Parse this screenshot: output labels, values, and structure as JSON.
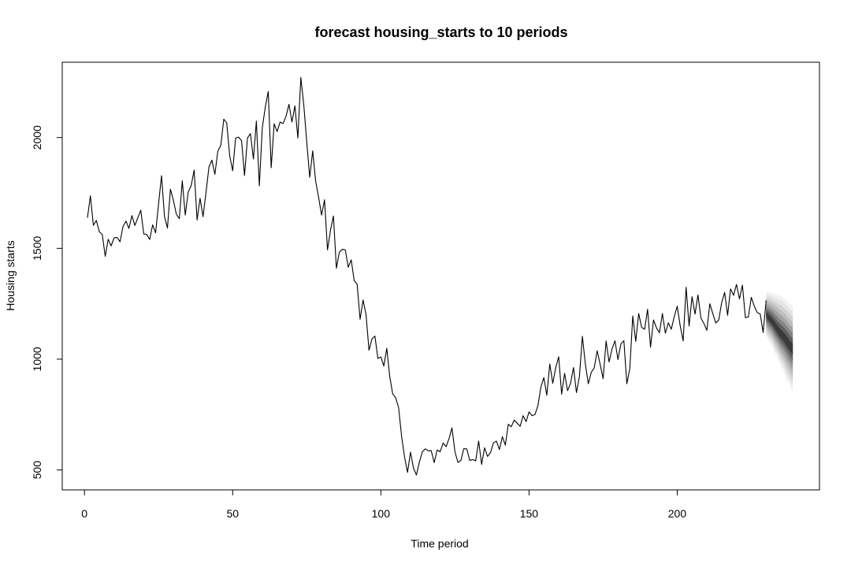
{
  "chart_data": {
    "type": "line",
    "title": "forecast housing_starts to 10 periods",
    "xlabel": "Time period",
    "ylabel": "Housing starts",
    "xlim": [
      -7.5,
      248
    ],
    "ylim": [
      410,
      2340
    ],
    "x_ticks": [
      0,
      50,
      100,
      150,
      200
    ],
    "y_ticks": [
      500,
      1000,
      1500,
      2000
    ],
    "grid": false,
    "legend": "none",
    "colors": {
      "line": "#000000",
      "fan_levels": [
        "#f2f2f2",
        "#e4e4e4",
        "#d2d2d2",
        "#bdbdbd",
        "#a3a3a3",
        "#858585",
        "#606060",
        "#3a3a3a"
      ]
    },
    "series": [
      {
        "values": [
          1638,
          1737,
          1604,
          1626,
          1575,
          1563,
          1464,
          1541,
          1511,
          1548,
          1549,
          1530,
          1598,
          1623,
          1590,
          1648,
          1603,
          1638,
          1672,
          1565,
          1563,
          1540,
          1606,
          1570,
          1701,
          1828,
          1643,
          1592,
          1767,
          1717,
          1654,
          1634,
          1805,
          1650,
          1754,
          1783,
          1853,
          1628,
          1726,
          1643,
          1751,
          1867,
          1898,
          1834,
          1939,
          1965,
          2083,
          2066,
          1918,
          1850,
          1998,
          2002,
          1986,
          1829,
          1998,
          2018,
          1903,
          2074,
          1782,
          2044,
          2137,
          2208,
          1864,
          2062,
          2027,
          2070,
          2063,
          2096,
          2150,
          2070,
          2143,
          1998,
          2271,
          2147,
          1979,
          1821,
          1940,
          1803,
          1730,
          1650,
          1719,
          1493,
          1581,
          1646,
          1410,
          1483,
          1496,
          1493,
          1415,
          1448,
          1355,
          1338,
          1180,
          1267,
          1201,
          1040,
          1091,
          1104,
          1003,
          1010,
          969,
          1049,
          921,
          843,
          826,
          781,
          651,
          559,
          489,
          580,
          509,
          477,
          536,
          582,
          595,
          586,
          587,
          533,
          590,
          582,
          621,
          605,
          641,
          690,
          582,
          534,
          543,
          596,
          595,
          543,
          547,
          541,
          630,
          525,
          600,
          561,
          578,
          623,
          630,
          592,
          650,
          612,
          706,
          695,
          725,
          711,
          697,
          745,
          718,
          762,
          745,
          750,
          790,
          874,
          917,
          837,
          978,
          891,
          961,
          1011,
          842,
          936,
          858,
          891,
          962,
          849,
          922,
          1103,
          978,
          889,
          940,
          961,
          1038,
          976,
          912,
          1082,
          987,
          1046,
          1083,
          998,
          1069,
          1083,
          889,
          957,
          1195,
          1080,
          1206,
          1143,
          1135,
          1225,
          1054,
          1177,
          1141,
          1119,
          1206,
          1117,
          1164,
          1135,
          1192,
          1239,
          1151,
          1082,
          1324,
          1150,
          1282,
          1203,
          1290,
          1185,
          1161,
          1130,
          1250,
          1206,
          1163,
          1176,
          1255,
          1301,
          1198,
          1317,
          1288,
          1337,
          1272,
          1334,
          1187,
          1190,
          1279,
          1239,
          1210,
          1204,
          1120,
          1265
        ]
      }
    ],
    "forecast": {
      "x": [
        230,
        231,
        232,
        233,
        234,
        235,
        236,
        237,
        238,
        239
      ],
      "mean": [
        1200,
        1185,
        1170,
        1150,
        1130,
        1112,
        1098,
        1080,
        1060,
        1045
      ],
      "interval_percent": [
        50,
        55,
        60,
        65,
        70,
        75,
        80,
        85,
        90,
        95,
        99
      ],
      "upper_99": [
        1300,
        1305,
        1300,
        1295,
        1290,
        1285,
        1275,
        1265,
        1250,
        1240
      ],
      "lower_99": [
        1100,
        1080,
        1060,
        1025,
        1000,
        965,
        940,
        905,
        880,
        850
      ]
    }
  }
}
